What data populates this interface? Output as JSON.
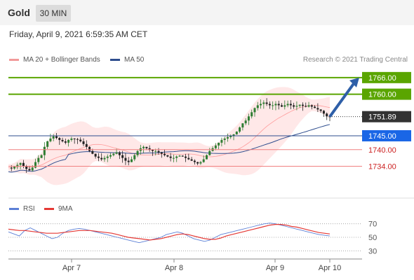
{
  "header": {
    "symbol": "Gold",
    "timeframe": "30 MIN"
  },
  "datetime": "Friday, April 9, 2021 6:59:35 AM CET",
  "legend": {
    "bollinger": "MA 20 + Bollinger Bands",
    "ma50": "MA 50",
    "credit": "Research © 2021 Trading Central"
  },
  "rsi_legend": {
    "rsi": "RSI",
    "ma9": "9MA"
  },
  "colors": {
    "green_level": "#5aa500",
    "blue_level": "#1a66e6",
    "red_level": "#cc2222",
    "ma50": "#2e4d8e",
    "bollinger": "#ff7a7a",
    "candle_up": "#2e7d32",
    "candle_down": "#222222",
    "rsi": "#5b7fd6",
    "rsi_ma": "#e53935"
  },
  "chart_data": [
    {
      "type": "candlestick",
      "title": "",
      "x_ticks": [
        "Apr 7",
        "Apr 8",
        "Apr 9",
        "Apr 10"
      ],
      "ylim": [
        1722,
        1770
      ],
      "bars_count": 160,
      "levels": [
        {
          "value": 1766.0,
          "label": "1766.00",
          "style": "green_box"
        },
        {
          "value": 1760.0,
          "label": "1760.00",
          "style": "green_box"
        },
        {
          "value": 1751.89,
          "label": "1751.89",
          "style": "current_price"
        },
        {
          "value": 1745.0,
          "label": "1745.00",
          "style": "blue_box"
        },
        {
          "value": 1740.0,
          "label": "1740.00",
          "style": "red_text"
        },
        {
          "value": 1734.0,
          "label": "1734.00",
          "style": "red_text"
        }
      ],
      "close_series": [
        1733.5,
        1733.2,
        1733.8,
        1734.5,
        1735.2,
        1734.0,
        1733.0,
        1732.5,
        1733.5,
        1735.5,
        1737.0,
        1738.0,
        1741.0,
        1743.0,
        1744.0,
        1744.8,
        1744.2,
        1743.5,
        1743.0,
        1742.5,
        1743.5,
        1744.0,
        1743.8,
        1743.6,
        1743.0,
        1742.0,
        1741.0,
        1739.5,
        1738.5,
        1737.5,
        1737.0,
        1736.5,
        1737.0,
        1737.5,
        1738.0,
        1738.5,
        1739.0,
        1738.0,
        1737.0,
        1736.0,
        1735.5,
        1736.5,
        1738.0,
        1739.5,
        1740.5,
        1741.0,
        1740.5,
        1740.0,
        1739.5,
        1739.5,
        1739.0,
        1738.5,
        1738.0,
        1737.5,
        1737.0,
        1737.0,
        1737.5,
        1737.8,
        1737.5,
        1737.0,
        1736.5,
        1736.0,
        1735.5,
        1735.0,
        1735.5,
        1736.5,
        1738.0,
        1739.5,
        1740.5,
        1741.5,
        1742.5,
        1743.5,
        1744.0,
        1744.5,
        1745.0,
        1745.5,
        1746.5,
        1748.0,
        1749.5,
        1750.5,
        1752.0,
        1753.5,
        1755.0,
        1756.0,
        1756.5,
        1757.0,
        1756.5,
        1756.0,
        1756.0,
        1756.5,
        1756.0,
        1755.5,
        1756.0,
        1756.5,
        1756.0,
        1755.5,
        1755.8,
        1756.2,
        1755.8,
        1755.5,
        1756.0,
        1755.5,
        1755.0,
        1754.5,
        1754.0,
        1753.0,
        1752.0,
        1751.89
      ],
      "lows_extremes": {
        "min": 1726.0,
        "max": 1758.0
      }
    },
    {
      "type": "line",
      "title": "RSI",
      "ylim": [
        20,
        80
      ],
      "y_ticks": [
        "70",
        "50",
        "30"
      ],
      "series": [
        {
          "name": "RSI",
          "values": [
            58,
            55,
            52,
            60,
            64,
            60,
            56,
            52,
            48,
            50,
            56,
            60,
            62,
            63,
            62,
            60,
            58,
            56,
            54,
            52,
            50,
            48,
            46,
            44,
            42,
            44,
            46,
            48,
            50,
            54,
            56,
            58,
            56,
            52,
            48,
            46,
            44,
            46,
            50,
            54,
            56,
            58,
            60,
            62,
            64,
            66,
            68,
            70,
            71,
            70,
            68,
            66,
            64,
            62,
            60,
            58,
            56,
            54,
            53,
            52
          ]
        },
        {
          "name": "9MA",
          "values": [
            62,
            61,
            60,
            60,
            59,
            58,
            57,
            56,
            56,
            56,
            57,
            58,
            59,
            60,
            60,
            60,
            59,
            58,
            57,
            56,
            54,
            52,
            50,
            49,
            48,
            47,
            46,
            47,
            48,
            50,
            52,
            54,
            55,
            54,
            52,
            50,
            48,
            47,
            47,
            49,
            52,
            54,
            56,
            58,
            60,
            62,
            64,
            66,
            68,
            69,
            69,
            68,
            66,
            65,
            63,
            61,
            59,
            57,
            56,
            55
          ]
        }
      ]
    }
  ]
}
